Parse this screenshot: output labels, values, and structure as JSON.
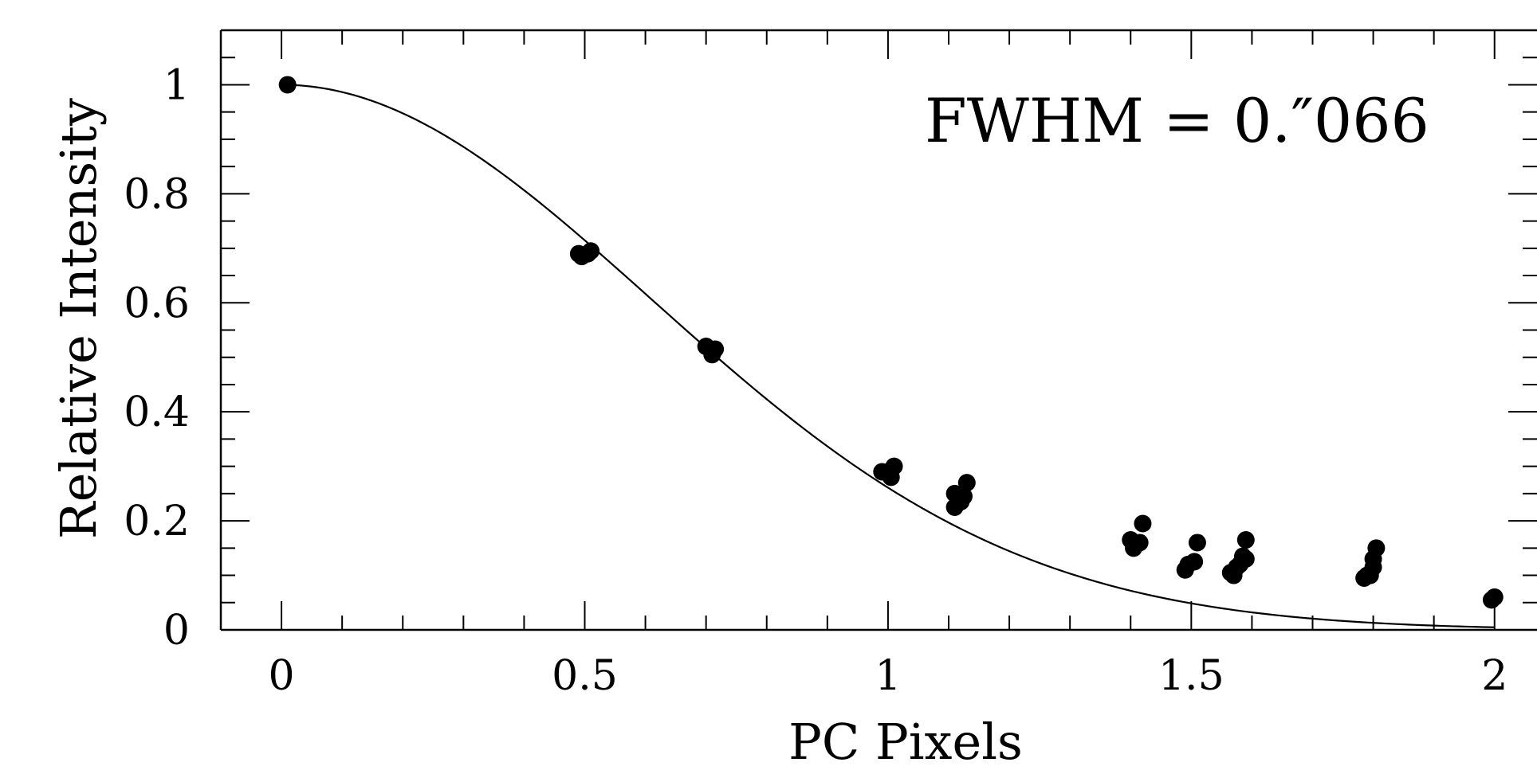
{
  "chart_data": {
    "type": "scatter",
    "xlabel": "PC Pixels",
    "ylabel": "Relative Intensity",
    "annotation": "FWHM = 0.″066",
    "xlim": [
      -0.1,
      2.07
    ],
    "ylim": [
      0,
      1.1
    ],
    "x_ticks": [
      {
        "value": 0,
        "label": "0"
      },
      {
        "value": 0.5,
        "label": "0.5"
      },
      {
        "value": 1,
        "label": "1"
      },
      {
        "value": 1.5,
        "label": "1.5"
      },
      {
        "value": 2,
        "label": "2"
      }
    ],
    "y_ticks": [
      {
        "value": 0,
        "label": "0"
      },
      {
        "value": 0.2,
        "label": "0.2"
      },
      {
        "value": 0.4,
        "label": "0.4"
      },
      {
        "value": 0.6,
        "label": "0.6"
      },
      {
        "value": 0.8,
        "label": "0.8"
      },
      {
        "value": 1,
        "label": "1"
      }
    ],
    "x_minor_step": 0.1,
    "y_minor_step": 0.05,
    "grid": false,
    "series": [
      {
        "kind": "points",
        "color": "#000000",
        "points": [
          [
            0.01,
            1.0
          ],
          [
            0.49,
            0.69
          ],
          [
            0.495,
            0.685
          ],
          [
            0.505,
            0.69
          ],
          [
            0.51,
            0.695
          ],
          [
            0.7,
            0.52
          ],
          [
            0.71,
            0.505
          ],
          [
            0.715,
            0.515
          ],
          [
            0.99,
            0.29
          ],
          [
            1.0,
            0.29
          ],
          [
            1.005,
            0.28
          ],
          [
            1.01,
            0.3
          ],
          [
            1.11,
            0.25
          ],
          [
            1.11,
            0.225
          ],
          [
            1.12,
            0.235
          ],
          [
            1.125,
            0.245
          ],
          [
            1.13,
            0.27
          ],
          [
            1.4,
            0.165
          ],
          [
            1.405,
            0.15
          ],
          [
            1.415,
            0.16
          ],
          [
            1.42,
            0.195
          ],
          [
            1.49,
            0.11
          ],
          [
            1.495,
            0.12
          ],
          [
            1.505,
            0.125
          ],
          [
            1.51,
            0.16
          ],
          [
            1.565,
            0.105
          ],
          [
            1.57,
            0.1
          ],
          [
            1.575,
            0.115
          ],
          [
            1.58,
            0.12
          ],
          [
            1.585,
            0.135
          ],
          [
            1.59,
            0.13
          ],
          [
            1.59,
            0.165
          ],
          [
            1.785,
            0.095
          ],
          [
            1.79,
            0.1
          ],
          [
            1.795,
            0.1
          ],
          [
            1.8,
            0.115
          ],
          [
            1.8,
            0.13
          ],
          [
            1.805,
            0.15
          ],
          [
            1.995,
            0.055
          ],
          [
            2.0,
            0.06
          ]
        ]
      },
      {
        "kind": "curve",
        "color": "#000000",
        "model": "gaussian",
        "center": 0,
        "peak": 1.0,
        "sigma": 0.61,
        "x_range": [
          0.01,
          2.0
        ]
      }
    ]
  }
}
